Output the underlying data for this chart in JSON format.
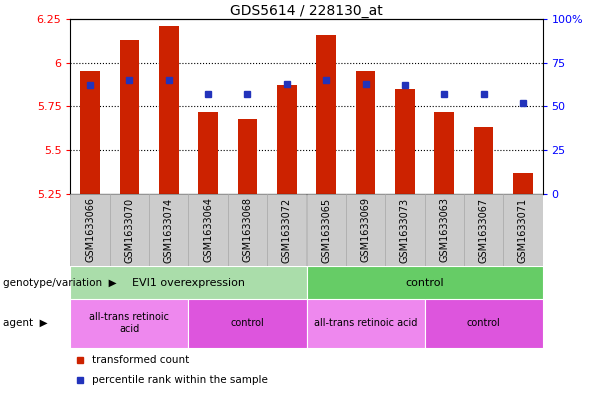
{
  "title": "GDS5614 / 228130_at",
  "samples": [
    "GSM1633066",
    "GSM1633070",
    "GSM1633074",
    "GSM1633064",
    "GSM1633068",
    "GSM1633072",
    "GSM1633065",
    "GSM1633069",
    "GSM1633073",
    "GSM1633063",
    "GSM1633067",
    "GSM1633071"
  ],
  "transformed_count": [
    5.95,
    6.13,
    6.21,
    5.72,
    5.68,
    5.87,
    6.16,
    5.95,
    5.85,
    5.72,
    5.63,
    5.37
  ],
  "percentile_rank": [
    62,
    65,
    65,
    57,
    57,
    63,
    65,
    63,
    62,
    57,
    57,
    52
  ],
  "ylim_left": [
    5.25,
    6.25
  ],
  "ylim_right": [
    0,
    100
  ],
  "yticks_left": [
    5.25,
    5.5,
    5.75,
    6.0,
    6.25
  ],
  "yticks_right": [
    0,
    25,
    50,
    75,
    100
  ],
  "ytick_labels_left": [
    "5.25",
    "5.5",
    "5.75",
    "6",
    "6.25"
  ],
  "ytick_labels_right": [
    "0",
    "25",
    "50",
    "75",
    "100%"
  ],
  "grid_values": [
    5.5,
    5.75,
    6.0
  ],
  "bar_color": "#cc2200",
  "dot_color": "#2233bb",
  "bar_bottom": 5.25,
  "genotype_groups": [
    {
      "label": "EVI1 overexpression",
      "start": 0,
      "end": 6,
      "color": "#aaddaa"
    },
    {
      "label": "control",
      "start": 6,
      "end": 12,
      "color": "#66cc66"
    }
  ],
  "agent_groups": [
    {
      "label": "all-trans retinoic\nacid",
      "start": 0,
      "end": 3,
      "color": "#ee88ee"
    },
    {
      "label": "control",
      "start": 3,
      "end": 6,
      "color": "#dd55dd"
    },
    {
      "label": "all-trans retinoic acid",
      "start": 6,
      "end": 9,
      "color": "#ee88ee"
    },
    {
      "label": "control",
      "start": 9,
      "end": 12,
      "color": "#dd55dd"
    }
  ],
  "legend_items": [
    {
      "label": "transformed count",
      "color": "#cc2200"
    },
    {
      "label": "percentile rank within the sample",
      "color": "#2233bb"
    }
  ],
  "label_bg_color": "#cccccc",
  "label_border_color": "#aaaaaa",
  "fig_bg_color": "#f0f0f0"
}
